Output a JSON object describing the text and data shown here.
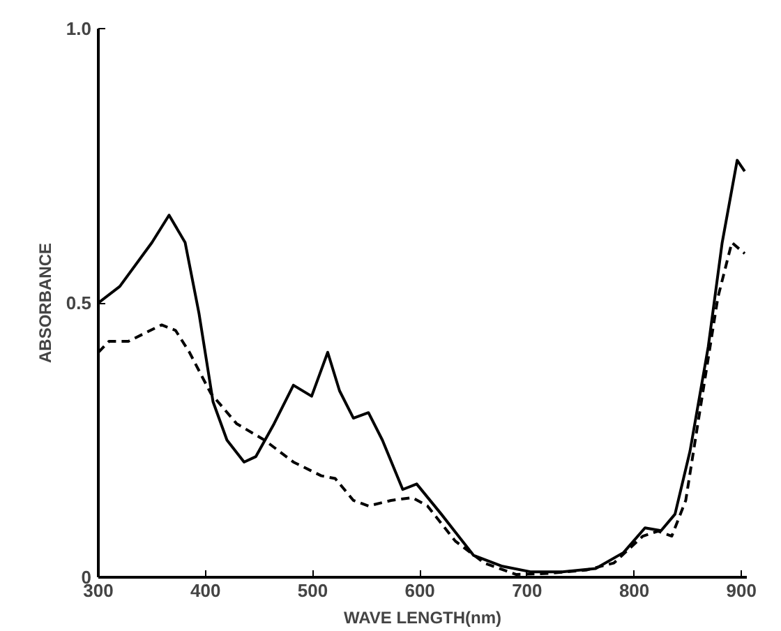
{
  "chart_data": {
    "type": "line",
    "xlabel": "WAVE LENGTH(nm)",
    "ylabel": "ABSORBANCE",
    "xlim": [
      300,
      905
    ],
    "ylim": [
      0,
      1.0
    ],
    "xticks": [
      300,
      400,
      500,
      600,
      700,
      800,
      900
    ],
    "yticks": [
      0,
      0.5,
      {
        "value": 1.0,
        "label": "1.0"
      }
    ],
    "grid": false,
    "series": [
      {
        "color": "#000000",
        "line_style": "solid",
        "x": [
          300,
          320,
          350,
          366,
          381,
          394,
          407,
          420,
          436,
          447,
          464,
          482,
          499,
          514,
          525,
          538,
          552,
          565,
          584,
          597,
          620,
          650,
          677,
          703,
          733,
          764,
          790,
          810,
          825,
          838,
          852,
          869,
          882,
          896,
          903
        ],
        "values": [
          0.5,
          0.53,
          0.61,
          0.66,
          0.61,
          0.48,
          0.32,
          0.25,
          0.21,
          0.22,
          0.28,
          0.35,
          0.33,
          0.41,
          0.34,
          0.29,
          0.3,
          0.25,
          0.16,
          0.17,
          0.115,
          0.04,
          0.02,
          0.01,
          0.01,
          0.016,
          0.045,
          0.09,
          0.085,
          0.115,
          0.23,
          0.42,
          0.61,
          0.76,
          0.74
        ]
      },
      {
        "color": "#000000",
        "line_style": "dashed",
        "x": [
          300,
          310,
          328,
          359,
          372,
          385,
          405,
          429,
          455,
          482,
          508,
          521,
          538,
          552,
          573,
          593,
          607,
          633,
          660,
          690,
          720,
          755,
          781,
          808,
          822,
          835,
          848,
          865,
          878,
          891,
          903
        ],
        "values": [
          0.41,
          0.43,
          0.43,
          0.46,
          0.45,
          0.41,
          0.335,
          0.28,
          0.25,
          0.21,
          0.185,
          0.18,
          0.14,
          0.13,
          0.14,
          0.145,
          0.13,
          0.066,
          0.026,
          0.005,
          0.007,
          0.013,
          0.026,
          0.075,
          0.084,
          0.075,
          0.14,
          0.35,
          0.51,
          0.61,
          0.59
        ]
      }
    ]
  }
}
